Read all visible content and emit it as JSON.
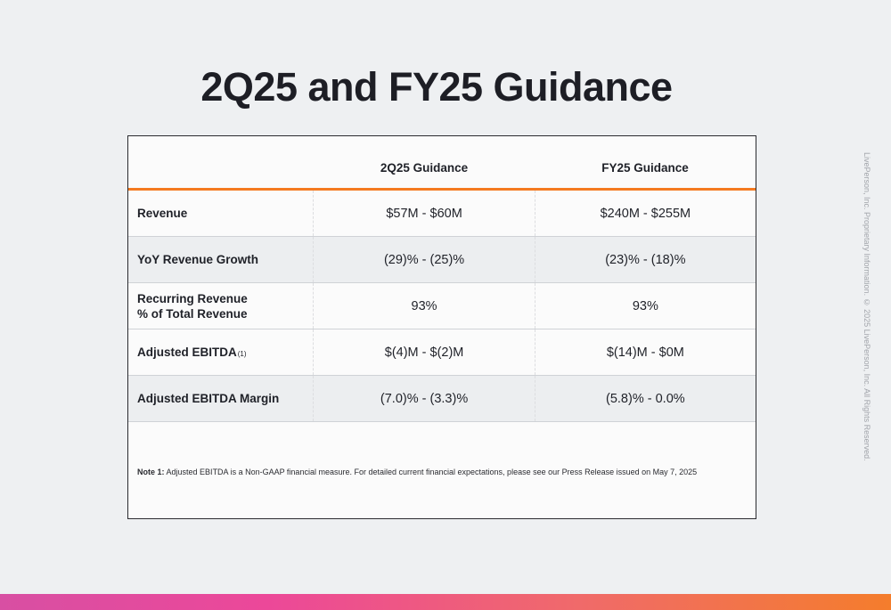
{
  "slide": {
    "title": "2Q25 and FY25 Guidance",
    "side_text": "LivePerson, Inc. Proprietary Information. © 2025 LivePerson, Inc. All Rights Reserved."
  },
  "table": {
    "headers": [
      "",
      "2Q25 Guidance",
      "FY25 Guidance"
    ],
    "rows": [
      {
        "label": "Revenue",
        "q": "$57M - $60M",
        "fy": "$240M - $255M"
      },
      {
        "label": "YoY Revenue Growth",
        "q": "(29)% - (25)%",
        "fy": "(23)% - (18)%"
      },
      {
        "label_line1": "Recurring Revenue",
        "label_line2": "% of Total Revenue",
        "q": "93%",
        "fy": "93%"
      },
      {
        "label": "Adjusted EBITDA",
        "sup": "(1)",
        "q": "$(4)M - $(2)M",
        "fy": "$(14)M - $0M"
      },
      {
        "label": "Adjusted EBITDA Margin",
        "q": "(7.0)% - (3.3)%",
        "fy": "(5.8)% - 0.0%"
      }
    ]
  },
  "note": {
    "label": "Note 1:",
    "text": "Adjusted EBITDA is a Non-GAAP financial measure. For detailed current financial expectations, please see our Press Release issued on May 7, 2025"
  },
  "colors": {
    "accent": "#f47a20",
    "band_start": "#d84fa3",
    "band_end": "#f47d2c"
  }
}
